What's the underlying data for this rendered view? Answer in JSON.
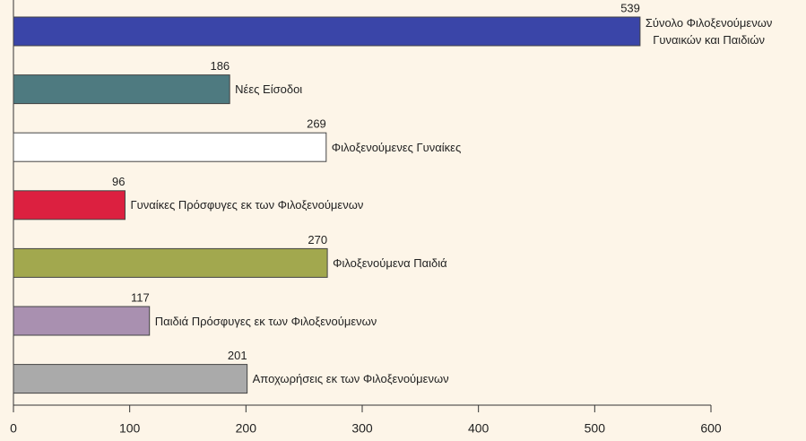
{
  "chart_data": {
    "type": "barh",
    "categories": [
      "Σύνολο Φιλοξενούμενων\nΓυναικών και Παιδιών",
      "Νέες Είσοδοι",
      "Φιλοξενούμενες Γυναίκες",
      "Γυναίκες Πρόσφυγες εκ των Φιλοξενούμενων",
      "Φιλοξενούμενα Παιδιά",
      "Παιδιά Πρόσφυγες εκ των Φιλοξενούμενων",
      "Αποχωρήσεις εκ των Φιλοξενούμενων"
    ],
    "values": [
      539,
      186,
      269,
      96,
      270,
      117,
      201
    ],
    "colors": [
      "#3a45a8",
      "#4e7a80",
      "#ffffff",
      "#dc2040",
      "#a2a84e",
      "#a990b0",
      "#aaaaaa"
    ],
    "xlim": [
      0,
      600
    ],
    "xticks": [
      0,
      100,
      200,
      300,
      400,
      500,
      600
    ],
    "grid": false
  }
}
